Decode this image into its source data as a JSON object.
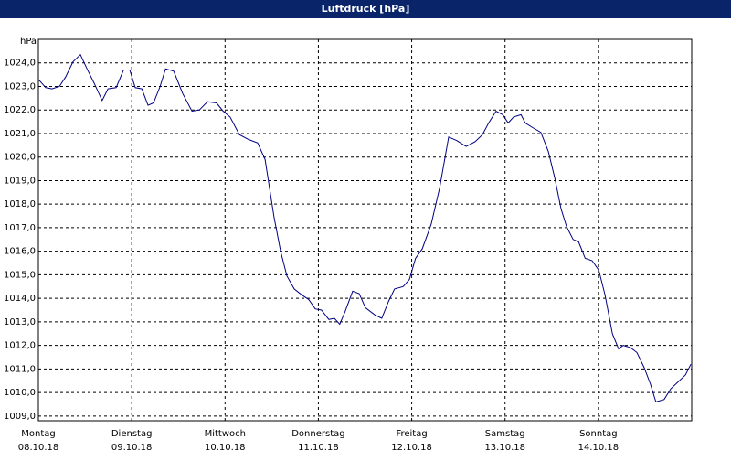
{
  "chart_data": {
    "type": "line",
    "title": "Luftdruck [hPa]",
    "y_unit": "hPa",
    "grid": true,
    "xlim": [
      0,
      168
    ],
    "xticks": [
      {
        "value": 0,
        "label": "Montag"
      },
      {
        "value": 24,
        "label": "Dienstag"
      },
      {
        "value": 48,
        "label": "Mittwoch"
      },
      {
        "value": 72,
        "label": "Donnerstag"
      },
      {
        "value": 96,
        "label": "Freitag"
      },
      {
        "value": 120,
        "label": "Samstag"
      },
      {
        "value": 144,
        "label": "Sonntag"
      }
    ],
    "xtick_dates": [
      "08.10.18",
      "09.10.18",
      "10.10.18",
      "11.10.18",
      "12.10.18",
      "13.10.18",
      "14.10.18"
    ],
    "ylim": [
      1008.8,
      1025.0
    ],
    "yticks": [
      {
        "value": 1009,
        "label": "1009,0"
      },
      {
        "value": 1010,
        "label": "1010,0"
      },
      {
        "value": 1011,
        "label": "1011,0"
      },
      {
        "value": 1012,
        "label": "1012,0"
      },
      {
        "value": 1013,
        "label": "1013,0"
      },
      {
        "value": 1014,
        "label": "1014,0"
      },
      {
        "value": 1015,
        "label": "1015,0"
      },
      {
        "value": 1016,
        "label": "1016,0"
      },
      {
        "value": 1017,
        "label": "1017,0"
      },
      {
        "value": 1018,
        "label": "1018,0"
      },
      {
        "value": 1019,
        "label": "1019,0"
      },
      {
        "value": 1020,
        "label": "1020,0"
      },
      {
        "value": 1021,
        "label": "1021,0"
      },
      {
        "value": 1022,
        "label": "1022,0"
      },
      {
        "value": 1023,
        "label": "1023,0"
      },
      {
        "value": 1024,
        "label": "1024,0"
      }
    ],
    "x": [
      0,
      1.9,
      3.5,
      5.4,
      7.0,
      8.9,
      10.8,
      12.5,
      14.3,
      16.4,
      17.9,
      20.0,
      21.9,
      23.5,
      24.9,
      26.6,
      28.2,
      29.6,
      31.3,
      32.7,
      34.8,
      37.1,
      39.5,
      41.4,
      43.5,
      45.8,
      47.5,
      49.3,
      51.7,
      54.0,
      56.4,
      58.3,
      60.6,
      62.3,
      63.9,
      65.8,
      67.7,
      69.5,
      71.2,
      72.8,
      74.7,
      76.1,
      77.5,
      78.9,
      80.8,
      82.5,
      84.1,
      86.5,
      88.3,
      90.0,
      91.6,
      93.8,
      95.4,
      97.0,
      98.7,
      101.0,
      103.2,
      105.5,
      107.6,
      110.0,
      112.3,
      114.2,
      115.8,
      117.7,
      119.4,
      120.8,
      122.2,
      124.1,
      125.2,
      127.1,
      129.2,
      131.1,
      132.8,
      134.4,
      135.8,
      137.5,
      138.9,
      140.6,
      142.4,
      144.1,
      145.7,
      147.6,
      149.2,
      150.4,
      152.3,
      153.9,
      155.8,
      157.4,
      158.8,
      160.9,
      162.6,
      164.5,
      166.4,
      167.8
    ],
    "series": [
      {
        "color": "#000080",
        "values": [
          1023.3,
          1022.95,
          1022.9,
          1023.0,
          1023.4,
          1024.05,
          1024.35,
          1023.75,
          1023.15,
          1022.4,
          1022.9,
          1022.95,
          1023.7,
          1023.7,
          1022.95,
          1022.9,
          1022.2,
          1022.3,
          1023.0,
          1023.75,
          1023.65,
          1022.7,
          1021.95,
          1022.0,
          1022.35,
          1022.3,
          1021.95,
          1021.7,
          1020.95,
          1020.75,
          1020.6,
          1019.9,
          1017.45,
          1016.0,
          1014.95,
          1014.4,
          1014.15,
          1013.95,
          1013.55,
          1013.5,
          1013.1,
          1013.15,
          1012.9,
          1013.45,
          1014.3,
          1014.2,
          1013.6,
          1013.3,
          1013.15,
          1013.85,
          1014.4,
          1014.5,
          1014.8,
          1015.7,
          1016.1,
          1017.15,
          1018.7,
          1020.85,
          1020.7,
          1020.45,
          1020.65,
          1020.95,
          1021.45,
          1021.95,
          1021.8,
          1021.45,
          1021.7,
          1021.8,
          1021.45,
          1021.25,
          1021.05,
          1020.25,
          1019.1,
          1017.8,
          1017.05,
          1016.5,
          1016.4,
          1015.7,
          1015.6,
          1015.2,
          1014.15,
          1012.5,
          1011.85,
          1012.0,
          1011.9,
          1011.7,
          1011.05,
          1010.35,
          1009.6,
          1009.7,
          1010.15,
          1010.45,
          1010.75,
          1011.2
        ]
      }
    ]
  }
}
